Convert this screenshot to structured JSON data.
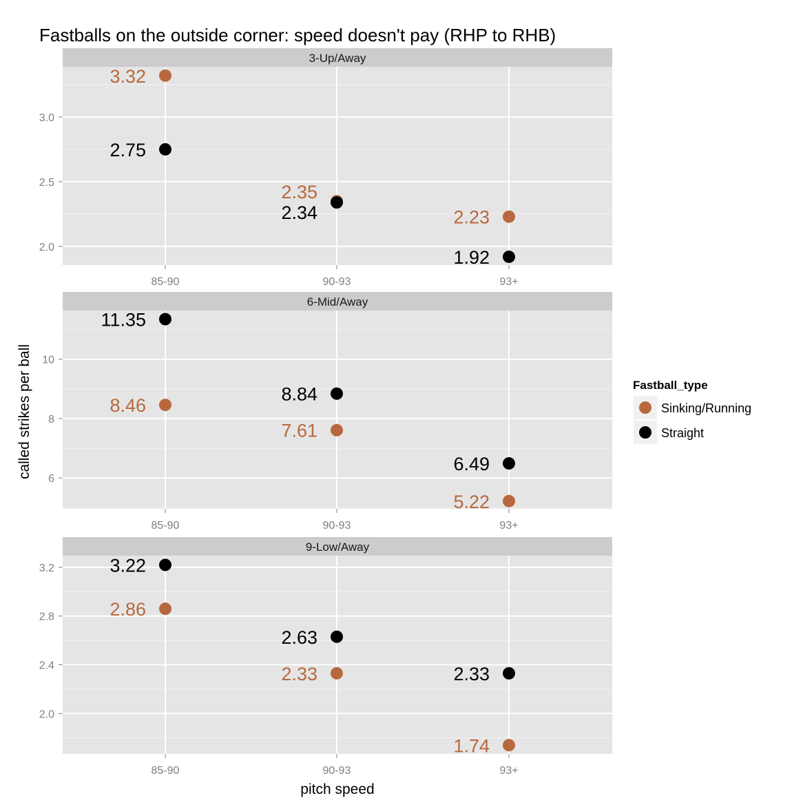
{
  "chart_data": {
    "type": "scatter",
    "title": "Fastballs on the outside corner: speed doesn't pay (RHP to RHB)",
    "xlabel": "pitch speed",
    "ylabel": "called strikes per ball",
    "categories": [
      "85-90",
      "90-93",
      "93+"
    ],
    "grid": true,
    "legend": {
      "title": "Fastball_type",
      "placement": "right",
      "entries": [
        "Sinking/Running",
        "Straight"
      ]
    },
    "colors": {
      "Sinking/Running": "#B8683E",
      "Straight": "#000000"
    },
    "panels": [
      {
        "label": "3-Up/Away",
        "ylim": [
          1.856,
          3.388
        ],
        "yticks": [
          2.0,
          2.5,
          3.0
        ],
        "ytick_labels": [
          "2.0",
          "2.5",
          "3.0"
        ],
        "series": [
          {
            "name": "Sinking/Running",
            "values": [
              3.32,
              2.35,
              2.23
            ]
          },
          {
            "name": "Straight",
            "values": [
              2.75,
              2.34,
              1.92
            ]
          }
        ]
      },
      {
        "label": "6-Mid/Away",
        "ylim": [
          4.96,
          11.64
        ],
        "yticks": [
          6,
          8,
          10
        ],
        "ytick_labels": [
          "6",
          "8",
          "10"
        ],
        "series": [
          {
            "name": "Sinking/Running",
            "values": [
              8.46,
              7.61,
              5.22
            ]
          },
          {
            "name": "Straight",
            "values": [
              11.35,
              8.84,
              6.49
            ]
          }
        ]
      },
      {
        "label": "9-Low/Away",
        "ylim": [
          1.668,
          3.296
        ],
        "yticks": [
          2.0,
          2.4,
          2.8,
          3.2
        ],
        "ytick_labels": [
          "2.0",
          "2.4",
          "2.8",
          "3.2"
        ],
        "series": [
          {
            "name": "Sinking/Running",
            "values": [
              2.86,
              2.33,
              1.74
            ]
          },
          {
            "name": "Straight",
            "values": [
              3.22,
              2.63,
              2.33
            ]
          }
        ]
      }
    ]
  }
}
